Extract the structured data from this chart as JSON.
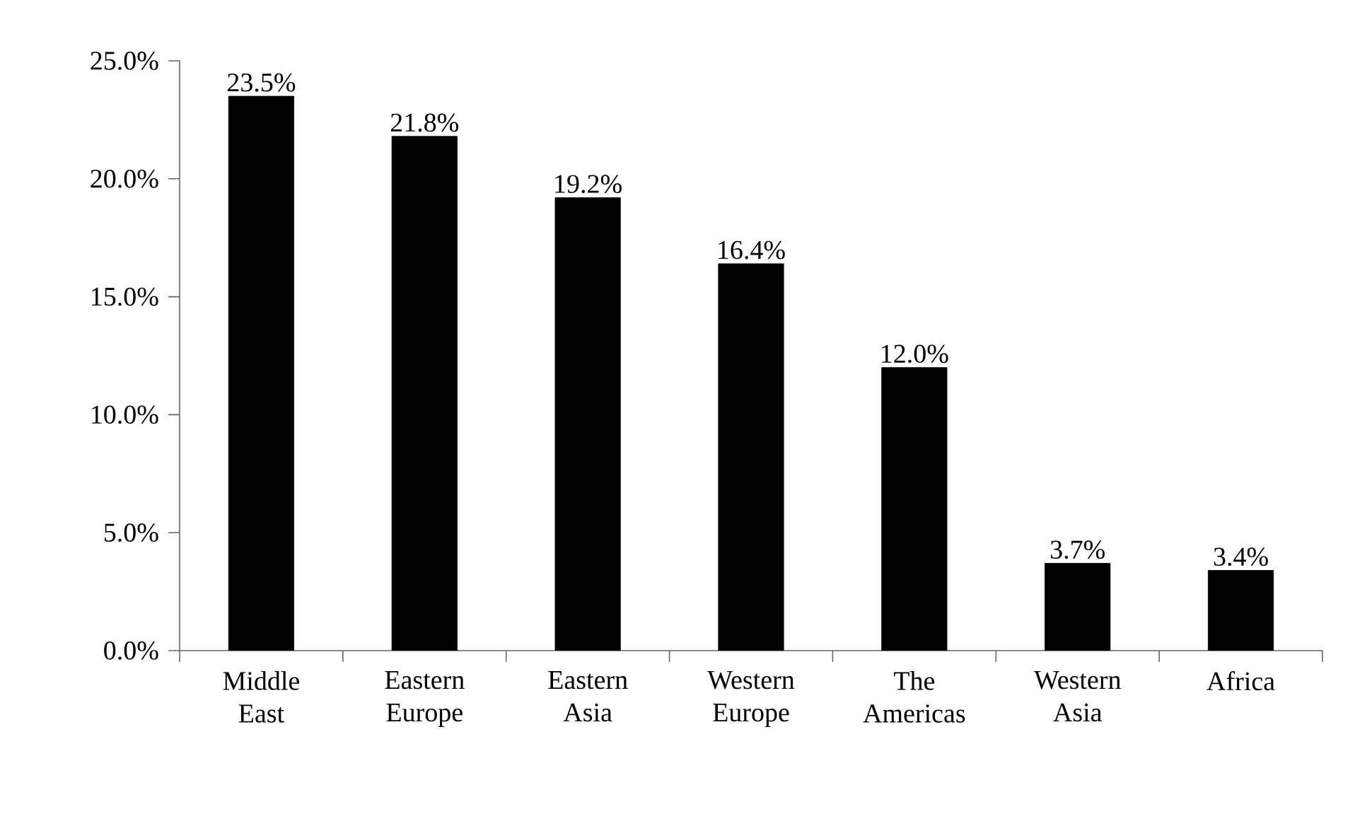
{
  "chart_data": {
    "type": "bar",
    "categories": [
      "Middle East",
      "Eastern Europe",
      "Eastern Asia",
      "Western Europe",
      "The Americas",
      "Western Asia",
      "Africa"
    ],
    "values": [
      23.5,
      21.8,
      19.2,
      16.4,
      12.0,
      3.7,
      3.4
    ],
    "value_labels": [
      "23.5%",
      "21.8%",
      "19.2%",
      "16.4%",
      "12.0%",
      "3.7%",
      "3.4%"
    ],
    "color": "#000000",
    "ylim": [
      0,
      25
    ],
    "yticks": [
      {
        "value": 0,
        "label": "0.0%"
      },
      {
        "value": 5,
        "label": "5.0%"
      },
      {
        "value": 10,
        "label": "10.0%"
      },
      {
        "value": 15,
        "label": "15.0%"
      },
      {
        "value": 20,
        "label": "20.0%"
      },
      {
        "value": 25,
        "label": "25.0%"
      }
    ],
    "grid": false
  }
}
